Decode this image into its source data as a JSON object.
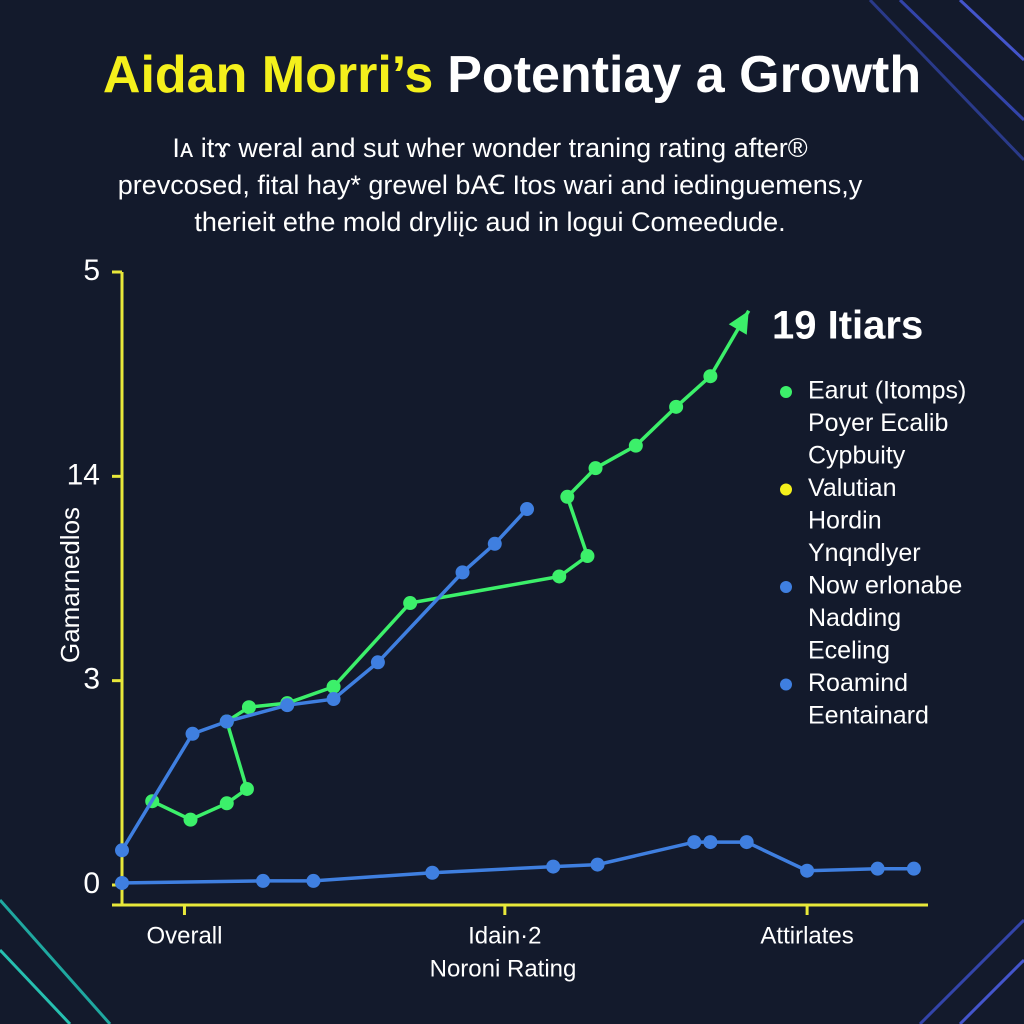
{
  "chart_data": {
    "type": "line",
    "title_parts": [
      {
        "text": "Aidan Morri’s",
        "color": "#f4f01c"
      },
      {
        "text": "Potentiay a Growth",
        "color": "#ffffff"
      }
    ],
    "subtitle": [
      "Iᴀ itɤ weral and sut wher wonder traning rating after®",
      "prevcosed, fital hay* grewel bAꞒ Itos wari and iedinguemens,y",
      "therieit ethe mold dryliįc aud in logui Comeedude."
    ],
    "y_label": "Gamarnedlos",
    "x_label": "Noroni Rating",
    "annotation": {
      "text": "19 Itiars",
      "color": "#3cf06a"
    },
    "xlim": [
      0,
      4
    ],
    "ylim": [
      0,
      3
    ],
    "xticks": [
      {
        "value": 0.31,
        "label": "Overall"
      },
      {
        "value": 1.9,
        "label": "Idain·2"
      },
      {
        "value": 3.4,
        "label": "Attirlates"
      }
    ],
    "yticks": [
      {
        "value": 0,
        "label": "0"
      },
      {
        "value": 1,
        "label": "3"
      },
      {
        "value": 2,
        "label": "14"
      },
      {
        "value": 3,
        "label": "5"
      }
    ],
    "axis_color": "#e8e83a",
    "series": [
      {
        "color": "#3cf06a",
        "arrow": true,
        "x": [
          0.15,
          0.34,
          0.52,
          0.62,
          0.52,
          0.63,
          0.82,
          1.05,
          1.43,
          2.17,
          2.31,
          2.21,
          2.35,
          2.55,
          2.75,
          2.92,
          3.11
        ],
        "values": [
          0.41,
          0.32,
          0.4,
          0.47,
          0.8,
          0.87,
          0.89,
          0.97,
          1.38,
          1.51,
          1.61,
          1.9,
          2.04,
          2.15,
          2.34,
          2.49,
          2.81
        ]
      },
      {
        "color": "#3f7fe0",
        "x": [
          0,
          0.35,
          0.52,
          0.82,
          1.05,
          1.27,
          1.69,
          1.85,
          2.01
        ],
        "values": [
          0.17,
          0.74,
          0.8,
          0.88,
          0.91,
          1.09,
          1.53,
          1.67,
          1.84
        ]
      },
      {
        "color": "#3f7fe0",
        "x": [
          0,
          0.7,
          0.95,
          1.54,
          2.14,
          2.36,
          2.84,
          2.92,
          3.1,
          3.4,
          3.75,
          3.93
        ],
        "values": [
          0.01,
          0.02,
          0.02,
          0.06,
          0.09,
          0.1,
          0.21,
          0.21,
          0.21,
          0.07,
          0.08,
          0.08
        ]
      }
    ],
    "legend": [
      {
        "color": "#3cf06a",
        "lines": [
          "Earut (Itomps)",
          "Poyer Ecalib",
          "Cypbuity"
        ]
      },
      {
        "color": "#f4f01c",
        "lines": [
          "Valutian",
          "Hordin",
          "Ynqndlyer"
        ]
      },
      {
        "color": "#3f7fe0",
        "lines": [
          "Now erlonabe",
          "Nadding",
          "Eceling"
        ]
      },
      {
        "color": "#3f7fe0",
        "lines": [
          "Roamind",
          "Eentainard"
        ]
      }
    ]
  }
}
